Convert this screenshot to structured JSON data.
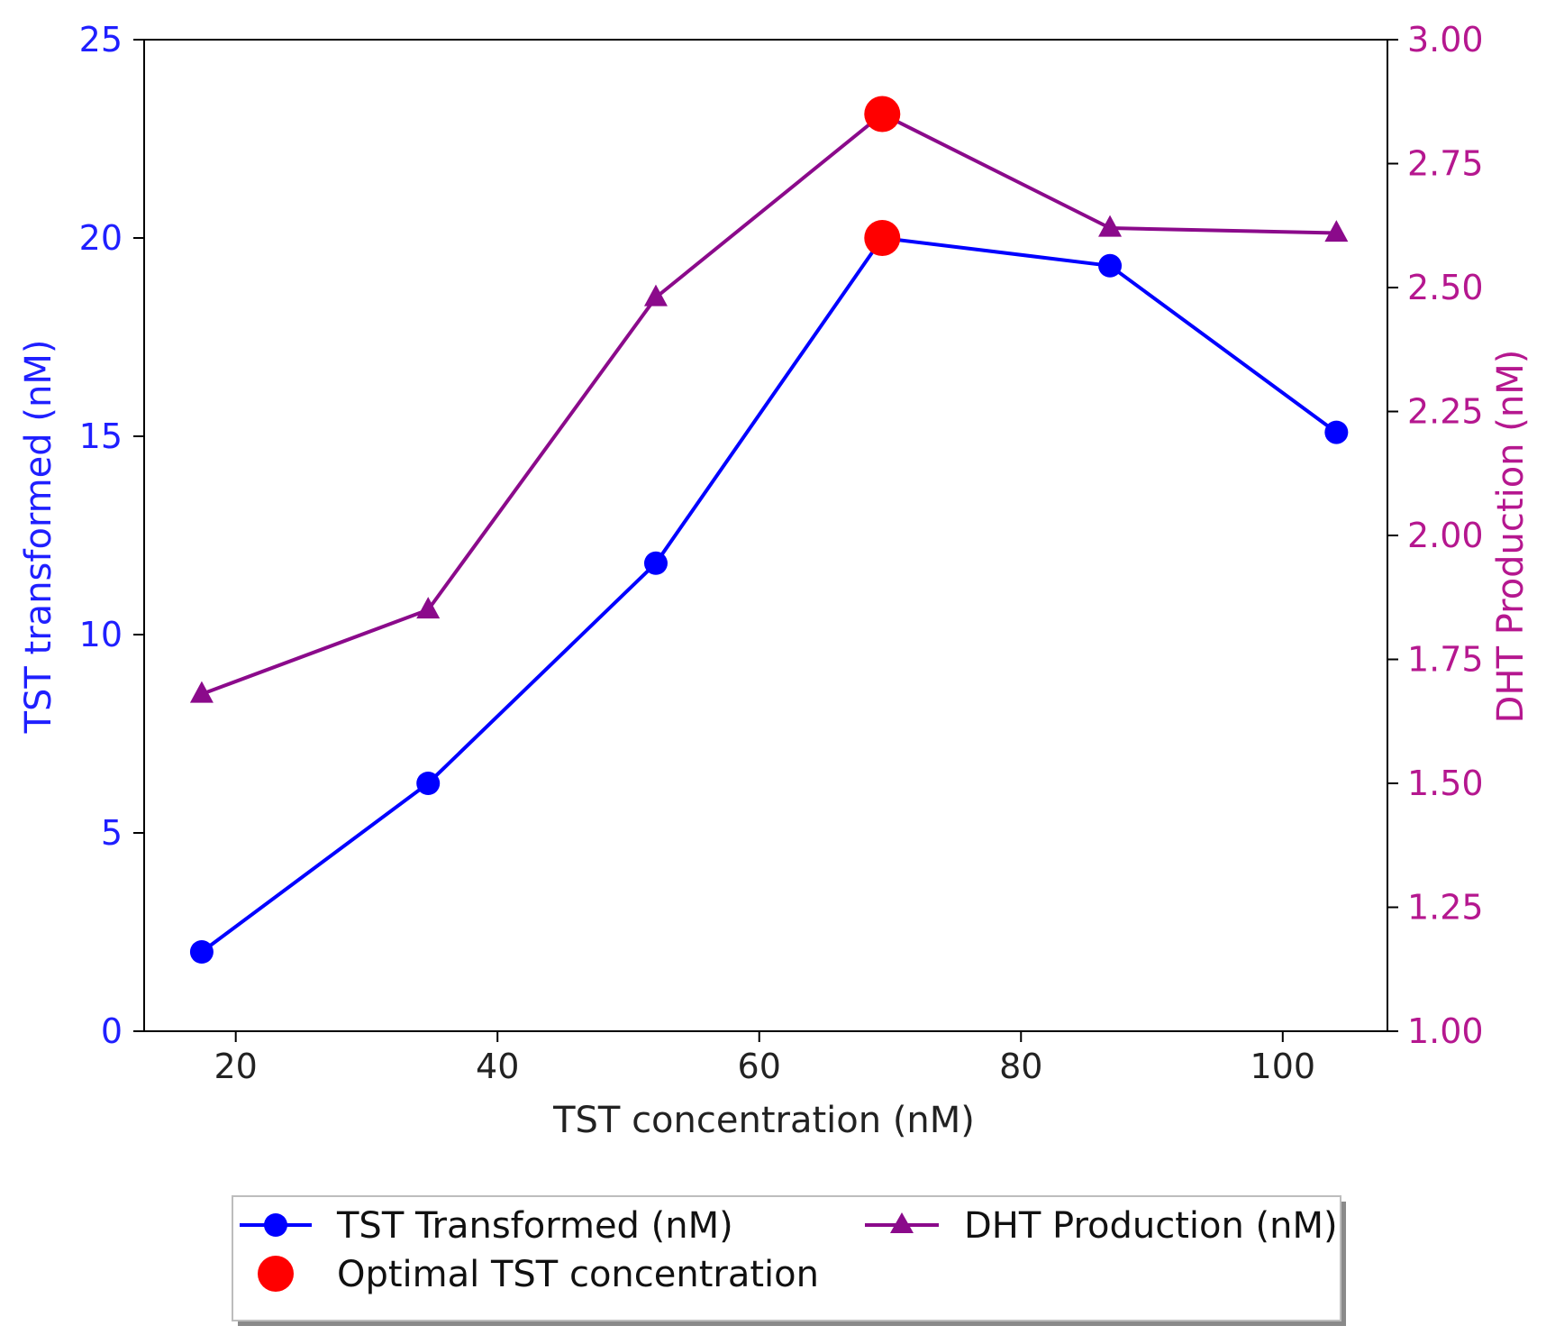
{
  "chart_data": {
    "type": "line",
    "x": [
      17.4,
      34.7,
      52.1,
      69.4,
      86.8,
      104.1
    ],
    "xlabel": "TST concentration (nM)",
    "xlim": [
      13,
      108
    ],
    "xticks": [
      20,
      40,
      60,
      80,
      100
    ],
    "ylabel_left": "TST transformed (nM)",
    "ylim_left": [
      0,
      25
    ],
    "yticks_left": [
      0,
      5,
      10,
      15,
      20,
      25
    ],
    "ylabel_right": "DHT Production (nM)",
    "ylim_right": [
      1.0,
      3.0
    ],
    "yticks_right": [
      "1.00",
      "1.25",
      "1.50",
      "1.75",
      "2.00",
      "2.25",
      "2.50",
      "2.75",
      "3.00"
    ],
    "series": [
      {
        "name": "TST Transformed (nM)",
        "axis": "left",
        "marker": "circle",
        "color": "#0000ff",
        "values": [
          2.0,
          6.25,
          11.8,
          20.0,
          19.3,
          15.1
        ]
      },
      {
        "name": "DHT Production (nM)",
        "axis": "right",
        "marker": "triangle",
        "color": "#8b0a8b",
        "values": [
          1.68,
          1.85,
          2.48,
          2.85,
          2.62,
          2.61
        ]
      }
    ],
    "optimal": {
      "name": "Optimal TST concentration",
      "color": "#ff0000",
      "x": 69.4,
      "y_left": 20.0,
      "y_right": 2.85
    },
    "legend": {
      "placement": "bottom-center",
      "entries": [
        "TST Transformed (nM)",
        "DHT Production (nM)",
        "Optimal TST concentration"
      ]
    },
    "colors": {
      "left_axis": "#1f1fff",
      "right_axis": "#b5178f"
    }
  }
}
